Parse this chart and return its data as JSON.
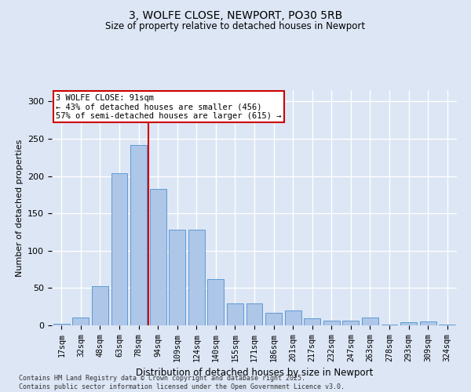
{
  "title_line1": "3, WOLFE CLOSE, NEWPORT, PO30 5RB",
  "title_line2": "Size of property relative to detached houses in Newport",
  "xlabel": "Distribution of detached houses by size in Newport",
  "ylabel": "Number of detached properties",
  "categories": [
    "17sqm",
    "32sqm",
    "48sqm",
    "63sqm",
    "78sqm",
    "94sqm",
    "109sqm",
    "124sqm",
    "140sqm",
    "155sqm",
    "171sqm",
    "186sqm",
    "201sqm",
    "217sqm",
    "232sqm",
    "247sqm",
    "263sqm",
    "278sqm",
    "293sqm",
    "309sqm",
    "324sqm"
  ],
  "values": [
    2,
    11,
    52,
    204,
    242,
    183,
    128,
    128,
    62,
    29,
    29,
    17,
    20,
    9,
    6,
    6,
    10,
    1,
    4,
    5,
    1
  ],
  "bar_color": "#aec6e8",
  "bar_edge_color": "#5b9bd5",
  "annotation_line1": "3 WOLFE CLOSE: 91sqm",
  "annotation_line2": "← 43% of detached houses are smaller (456)",
  "annotation_line3": "57% of semi-detached houses are larger (615) →",
  "vline_color": "#cc0000",
  "vline_index": 5,
  "annotation_box_color": "#ffffff",
  "annotation_box_edge": "#cc0000",
  "background_color": "#dce6f5",
  "grid_color": "#ffffff",
  "ylim": [
    0,
    315
  ],
  "yticks": [
    0,
    50,
    100,
    150,
    200,
    250,
    300
  ],
  "footer_line1": "Contains HM Land Registry data © Crown copyright and database right 2025.",
  "footer_line2": "Contains public sector information licensed under the Open Government Licence v3.0."
}
